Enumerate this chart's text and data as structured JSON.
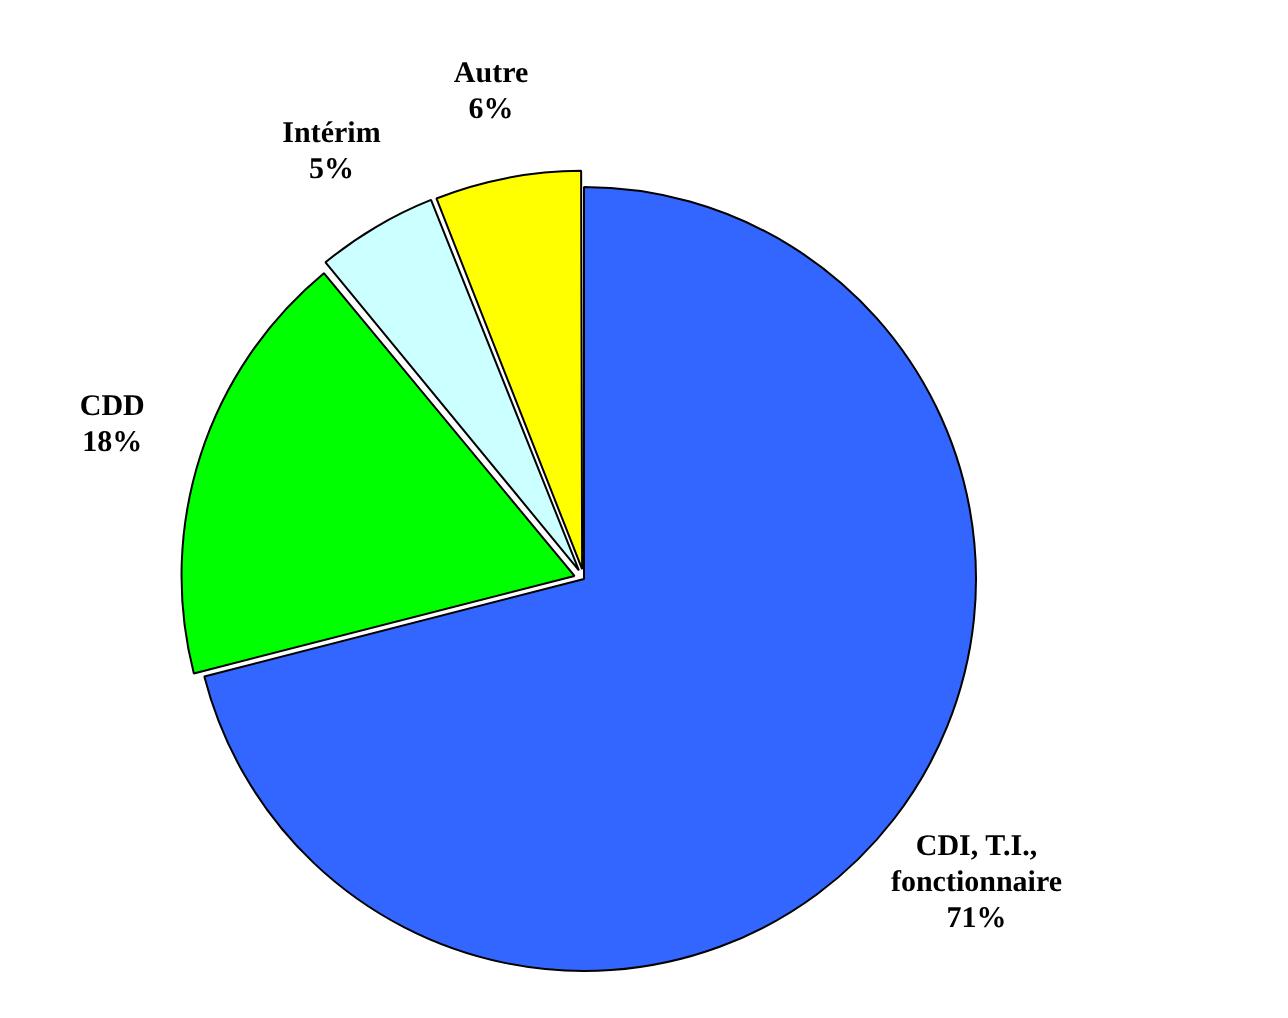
{
  "chart_data": {
    "type": "pie",
    "categories": [
      "CDI, T.I., fonctionnaire",
      "CDD",
      "Intérim",
      "Autre"
    ],
    "values": [
      71,
      18,
      5,
      6
    ],
    "colors": [
      "#3366ff",
      "#00ff00",
      "#ccffff",
      "#ffff00"
    ],
    "value_labels": [
      "71%",
      "18%",
      "5%",
      "6%"
    ],
    "legend": false
  }
}
